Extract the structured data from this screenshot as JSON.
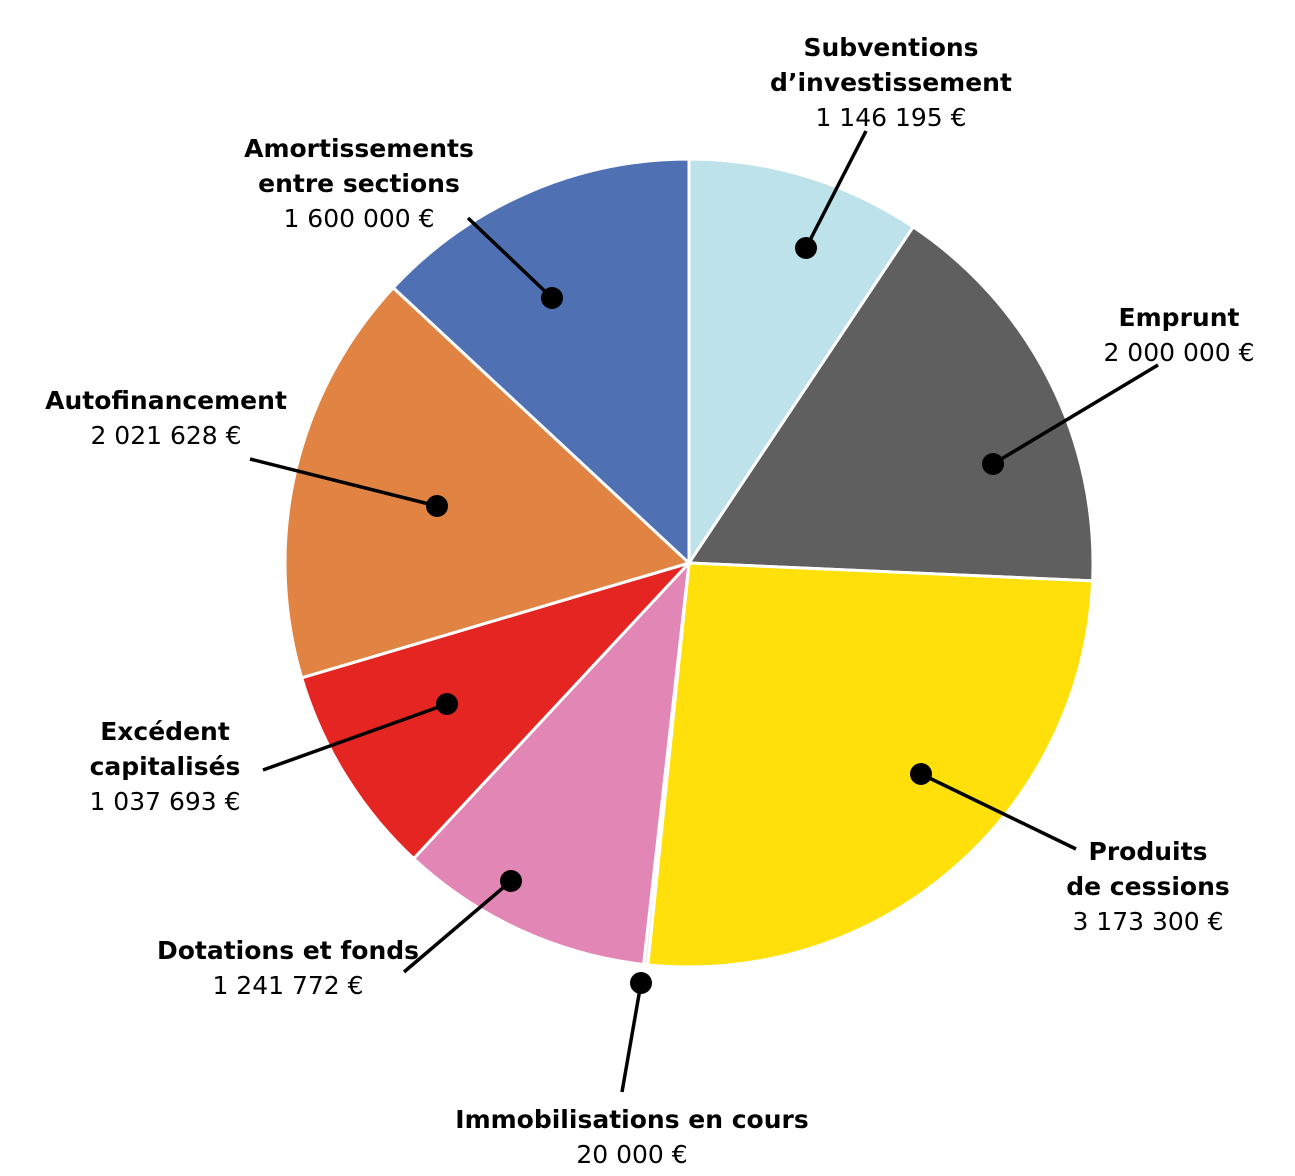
{
  "chart_data": {
    "type": "pie",
    "start_angle_deg": 0,
    "direction": "clockwise",
    "slices": [
      {
        "lines": [
          "Subventions",
          "d’investissement"
        ],
        "value_text": "1 146 195 €",
        "value": 1146195,
        "color": "#bde2ea"
      },
      {
        "lines": [
          "Emprunt"
        ],
        "value_text": "2 000 000 €",
        "value": 2000000,
        "color": "#5f5f5f"
      },
      {
        "lines": [
          "Produits",
          "de cessions"
        ],
        "value_text": "3 173 300 €",
        "value": 3173300,
        "color": "#ffe00a"
      },
      {
        "lines": [
          "Immobilisations en cours"
        ],
        "value_text": "20 000 €",
        "value": 20000,
        "color": "#e8e8e8"
      },
      {
        "lines": [
          "Dotations et fonds"
        ],
        "value_text": "1 241 772 €",
        "value": 1241772,
        "color": "#e286b5"
      },
      {
        "lines": [
          "Excédent",
          "capitalisés"
        ],
        "value_text": "1 037 693 €",
        "value": 1037693,
        "color": "#e42521"
      },
      {
        "lines": [
          "Autofinancement"
        ],
        "value_text": "2 021 628 €",
        "value": 2021628,
        "color": "#e08343"
      },
      {
        "lines": [
          "Amortissements",
          "entre sections"
        ],
        "value_text": "1 600 000 €",
        "value": 1600000,
        "color": "#5070b4"
      }
    ]
  }
}
